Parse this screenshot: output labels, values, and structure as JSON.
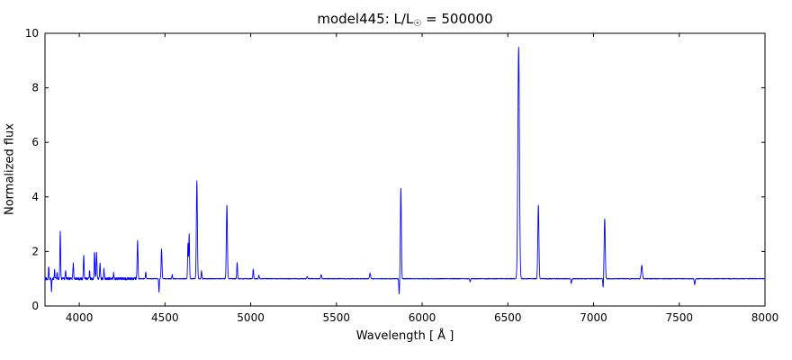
{
  "chart_data": {
    "type": "line",
    "title": "model445: L/L☉ = 500000",
    "title_parts": {
      "prefix": "model445: L/L",
      "sub": "☉",
      "suffix": " = 500000"
    },
    "xlabel": "Wavelength [ Å ]",
    "ylabel": "Normalized flux",
    "xlim": [
      3800,
      8000
    ],
    "ylim": [
      0,
      10
    ],
    "x_ticks": [
      4000,
      4500,
      5000,
      5500,
      6000,
      6500,
      7000,
      7500,
      8000
    ],
    "y_ticks": [
      0,
      2,
      4,
      6,
      8,
      10
    ],
    "line_color": "#0000ff",
    "frame_color": "#000000",
    "background_color": "#ffffff",
    "grid": false,
    "legend": false,
    "continuum": 1.0,
    "noise": {
      "boundary": 4350,
      "blue_amplitude": 0.045,
      "red_amplitude": 0.012
    },
    "lines": [
      {
        "wavelength": 3822,
        "peak": 1.45,
        "sigma": 1.8
      },
      {
        "wavelength": 3838,
        "peak": 0.52,
        "sigma": 1.5
      },
      {
        "wavelength": 3856,
        "peak": 1.3,
        "sigma": 1.8
      },
      {
        "wavelength": 3871,
        "peak": 1.25,
        "sigma": 1.5
      },
      {
        "wavelength": 3889,
        "peak": 2.75,
        "sigma": 2.2
      },
      {
        "wavelength": 3920,
        "peak": 1.3,
        "sigma": 2.0
      },
      {
        "wavelength": 3965,
        "peak": 1.55,
        "sigma": 2.2
      },
      {
        "wavelength": 4026,
        "peak": 1.85,
        "sigma": 2.2
      },
      {
        "wavelength": 4060,
        "peak": 1.3,
        "sigma": 1.8
      },
      {
        "wavelength": 4089,
        "peak": 2.0,
        "sigma": 2.2
      },
      {
        "wavelength": 4101,
        "peak": 1.95,
        "sigma": 2.2
      },
      {
        "wavelength": 4121,
        "peak": 1.6,
        "sigma": 2.0
      },
      {
        "wavelength": 4144,
        "peak": 1.35,
        "sigma": 2.0
      },
      {
        "wavelength": 4200,
        "peak": 1.2,
        "sigma": 2.0
      },
      {
        "wavelength": 4340,
        "peak": 2.4,
        "sigma": 2.5
      },
      {
        "wavelength": 4388,
        "peak": 1.25,
        "sigma": 2.0
      },
      {
        "wavelength": 4465,
        "peak": 0.5,
        "sigma": 1.8
      },
      {
        "wavelength": 4480,
        "peak": 2.1,
        "sigma": 2.5
      },
      {
        "wavelength": 4542,
        "peak": 1.15,
        "sigma": 2.0
      },
      {
        "wavelength": 4634,
        "peak": 2.3,
        "sigma": 2.2
      },
      {
        "wavelength": 4641,
        "peak": 2.65,
        "sigma": 2.2
      },
      {
        "wavelength": 4686,
        "peak": 4.6,
        "sigma": 3.0
      },
      {
        "wavelength": 4713,
        "peak": 1.3,
        "sigma": 2.0
      },
      {
        "wavelength": 4861,
        "peak": 3.7,
        "sigma": 3.0
      },
      {
        "wavelength": 4921,
        "peak": 1.6,
        "sigma": 2.2
      },
      {
        "wavelength": 5015,
        "peak": 1.35,
        "sigma": 2.2
      },
      {
        "wavelength": 5048,
        "peak": 1.12,
        "sigma": 2.0
      },
      {
        "wavelength": 5330,
        "peak": 1.08,
        "sigma": 2.5
      },
      {
        "wavelength": 5411,
        "peak": 1.15,
        "sigma": 2.5
      },
      {
        "wavelength": 5696,
        "peak": 1.2,
        "sigma": 3.0
      },
      {
        "wavelength": 5866,
        "peak": 0.45,
        "sigma": 2.0
      },
      {
        "wavelength": 5876,
        "peak": 4.3,
        "sigma": 2.8
      },
      {
        "wavelength": 6280,
        "peak": 0.88,
        "sigma": 2.0
      },
      {
        "wavelength": 6563,
        "peak": 9.5,
        "sigma": 4.5
      },
      {
        "wavelength": 6678,
        "peak": 3.7,
        "sigma": 3.2
      },
      {
        "wavelength": 6870,
        "peak": 0.82,
        "sigma": 2.2
      },
      {
        "wavelength": 7056,
        "peak": 0.65,
        "sigma": 2.0
      },
      {
        "wavelength": 7065,
        "peak": 3.2,
        "sigma": 3.2
      },
      {
        "wavelength": 7281,
        "peak": 1.5,
        "sigma": 3.5
      },
      {
        "wavelength": 7590,
        "peak": 0.78,
        "sigma": 2.5
      }
    ]
  }
}
